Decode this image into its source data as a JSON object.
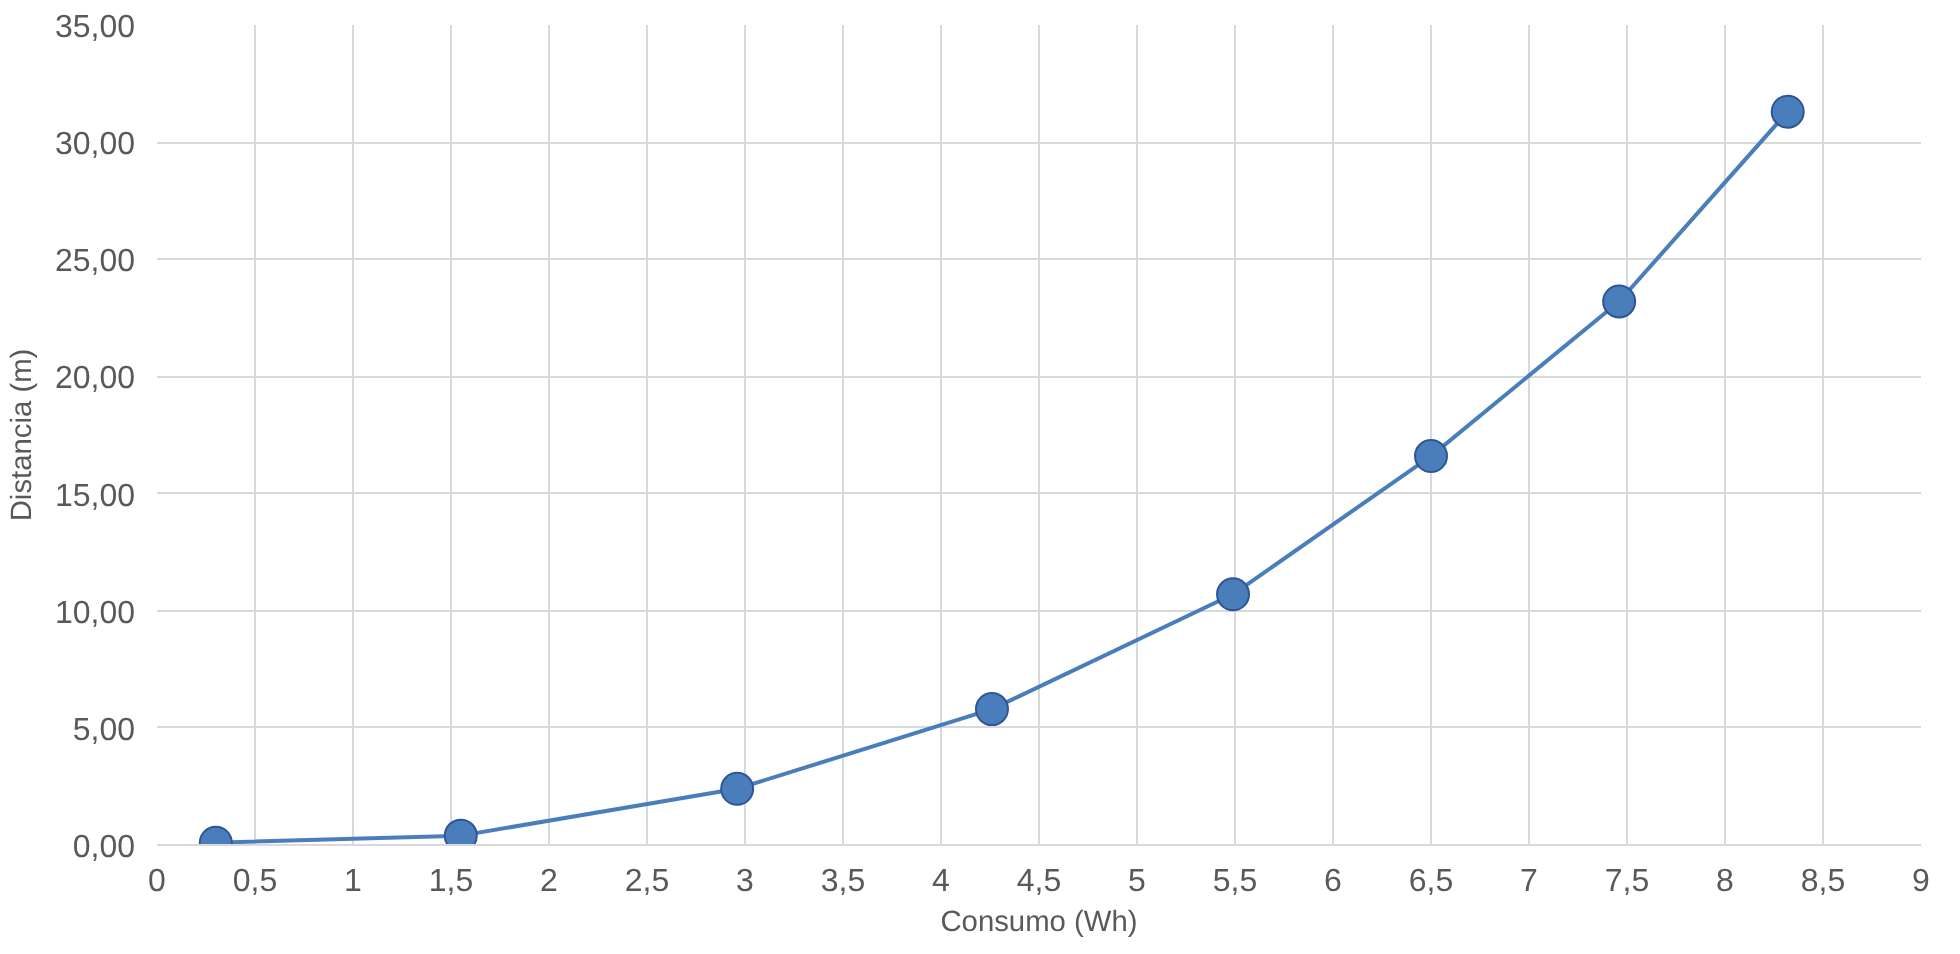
{
  "chart_data": {
    "type": "line",
    "xlabel": "Consumo (Wh)",
    "ylabel": "Distancia (m)",
    "x": [
      0.3,
      1.55,
      2.96,
      4.26,
      5.49,
      6.5,
      7.46,
      8.32
    ],
    "series": [
      {
        "color": "#4a7ebb",
        "values": [
          0.1,
          0.4,
          2.4,
          5.8,
          10.7,
          16.6,
          23.2,
          31.3
        ]
      }
    ],
    "xlim": [
      0,
      9
    ],
    "xticks": [
      0,
      {
        "value": 0.5,
        "label": "0,5"
      },
      1,
      {
        "value": 1.5,
        "label": "1,5"
      },
      2,
      {
        "value": 2.5,
        "label": "2,5"
      },
      3,
      {
        "value": 3.5,
        "label": "3,5"
      },
      4,
      {
        "value": 4.5,
        "label": "4,5"
      },
      5,
      {
        "value": 5.5,
        "label": "5,5"
      },
      6,
      {
        "value": 6.5,
        "label": "6,5"
      },
      7,
      {
        "value": 7.5,
        "label": "7,5"
      },
      8,
      {
        "value": 8.5,
        "label": "8,5"
      },
      9
    ],
    "ylim": [
      0,
      35
    ],
    "yticks": [
      {
        "value": 0,
        "label": "0,00"
      },
      {
        "value": 5,
        "label": "5,00"
      },
      {
        "value": 10,
        "label": "10,00"
      },
      {
        "value": 15,
        "label": "15,00"
      },
      {
        "value": 20,
        "label": "20,00"
      },
      {
        "value": 25,
        "label": "25,00"
      },
      {
        "value": 30,
        "label": "30,00"
      },
      {
        "value": 35,
        "label": "35,00"
      }
    ],
    "grid": true,
    "marker": "circle",
    "line_style": "solid"
  }
}
